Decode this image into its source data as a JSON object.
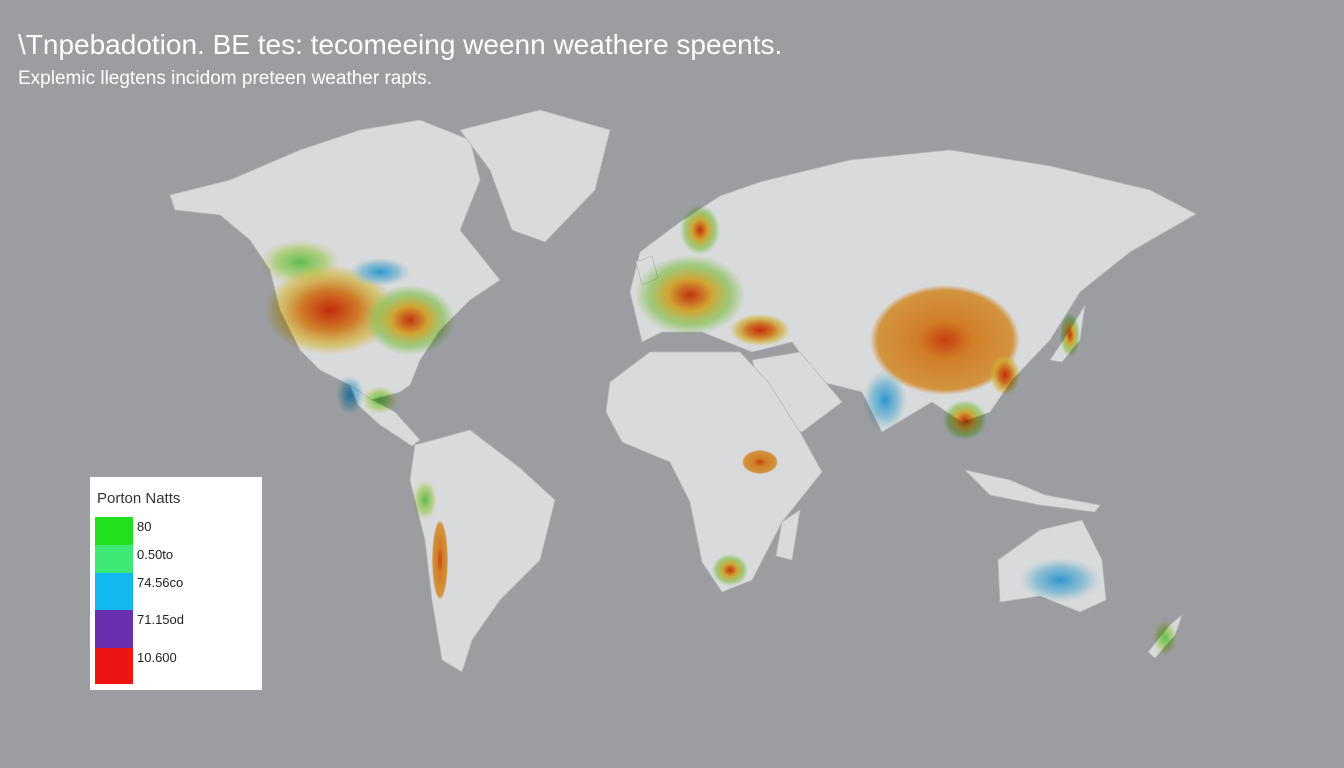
{
  "title": "\\Tnpebadotion. BE tes: tecomeeing weenn weathere speents.",
  "subtitle": "Explemic llegtens incidom preteen weather rapts.",
  "legend": {
    "title": "Porton Natts",
    "items": [
      {
        "label": "80",
        "color": "#22e01e"
      },
      {
        "label": "0.50to",
        "color": "#3de874"
      },
      {
        "label": "74.56co",
        "color": "#12b8f0"
      },
      {
        "label": "71.15od",
        "color": "#6a2fb0"
      },
      {
        "label": "10.600",
        "color": "#ee1414"
      }
    ]
  }
}
